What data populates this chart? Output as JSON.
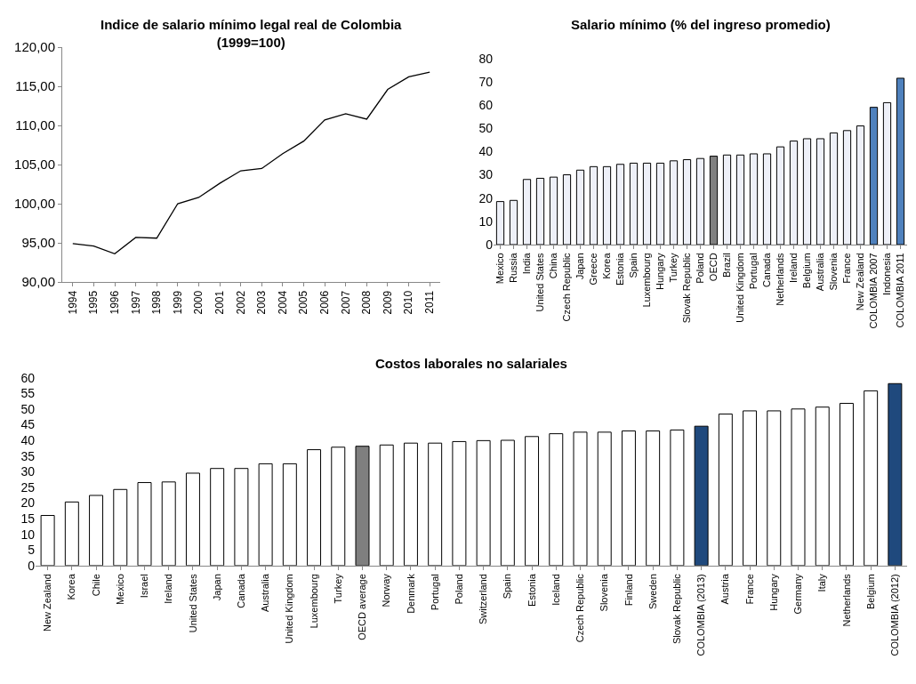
{
  "chart_data": [
    {
      "type": "line",
      "title": "Indice de salario mínimo legal real de Colombia\n(1999=100)",
      "categories": [
        "1994",
        "1995",
        "1996",
        "1997",
        "1998",
        "1999",
        "2000",
        "2001",
        "2002",
        "2003",
        "2004",
        "2005",
        "2006",
        "2007",
        "2008",
        "2009",
        "2010",
        "2011"
      ],
      "values": [
        94.9,
        94.6,
        93.6,
        95.7,
        95.6,
        100.0,
        100.8,
        102.6,
        104.2,
        104.5,
        106.4,
        108.0,
        110.7,
        111.5,
        110.8,
        114.6,
        116.2,
        116.8
      ],
      "color": "#000000",
      "ylim": [
        90,
        120
      ],
      "yticks": [
        {
          "value": 90,
          "label": "90,00"
        },
        {
          "value": 95,
          "label": "95,00"
        },
        {
          "value": 100,
          "label": "100,00"
        },
        {
          "value": 105,
          "label": "105,00"
        },
        {
          "value": 110,
          "label": "110,00"
        },
        {
          "value": 115,
          "label": "115,00"
        },
        {
          "value": 120,
          "label": "120,00"
        }
      ]
    },
    {
      "type": "bar",
      "title": "Salario mínimo (% del ingreso promedio)",
      "categories": [
        "Mexico",
        "Russia",
        "India",
        "United States",
        "China",
        "Czech Republic",
        "Japan",
        "Greece",
        "Korea",
        "Estonia",
        "Spain",
        "Luxembourg",
        "Hungary",
        "Turkey",
        "Slovak Republic",
        "Poland",
        "OECD",
        "Brazil",
        "United Kingdom",
        "Portugal",
        "Canada",
        "Netherlands",
        "Ireland",
        "Belgium",
        "Australia",
        "Slovenia",
        "France",
        "New Zealand",
        "COLOMBIA 2007",
        "Indonesia",
        "COLOMBIA 2011"
      ],
      "values": [
        18.5,
        19,
        28,
        28.5,
        29,
        30,
        32,
        33.5,
        33.5,
        34.5,
        35,
        35,
        35,
        36,
        36.5,
        37,
        38,
        38.5,
        38.5,
        39,
        39,
        42,
        44.5,
        45.5,
        45.5,
        48,
        49,
        51,
        59,
        61,
        71.5
      ],
      "colors": [
        "#eef0f8",
        "#eef0f8",
        "#eef0f8",
        "#eef0f8",
        "#eef0f8",
        "#eef0f8",
        "#eef0f8",
        "#eef0f8",
        "#eef0f8",
        "#eef0f8",
        "#eef0f8",
        "#eef0f8",
        "#eef0f8",
        "#eef0f8",
        "#eef0f8",
        "#eef0f8",
        "#808080",
        "#eef0f8",
        "#eef0f8",
        "#eef0f8",
        "#eef0f8",
        "#eef0f8",
        "#eef0f8",
        "#eef0f8",
        "#eef0f8",
        "#eef0f8",
        "#eef0f8",
        "#eef0f8",
        "#4f81bd",
        "#eef0f8",
        "#4f81bd"
      ],
      "ylim": [
        0,
        80
      ],
      "yticks": [
        0,
        10,
        20,
        30,
        40,
        50,
        60,
        70,
        80
      ]
    },
    {
      "type": "bar",
      "title": "Costos laborales no salariales",
      "categories": [
        "New Zealand",
        "Korea",
        "Chile",
        "Mexico",
        "Israel",
        "Ireland",
        "United States",
        "Japan",
        "Canada",
        "Australia",
        "United Kingdom",
        "Luxembourg",
        "Turkey",
        "OECD average",
        "Norway",
        "Denmark",
        "Portugal",
        "Poland",
        "Switzerland",
        "Spain",
        "Estonia",
        "Iceland",
        "Czech Republic",
        "Slovenia",
        "Finland",
        "Sweden",
        "Slovak Republic",
        "COLOMBIA (2013)",
        "Austria",
        "France",
        "Hungary",
        "Germany",
        "Italy",
        "Netherlands",
        "Belgium",
        "COLOMBIA (2012)"
      ],
      "values": [
        16,
        20.3,
        22.4,
        24.3,
        26.5,
        26.7,
        29.5,
        31,
        31,
        32.5,
        32.5,
        37,
        37.8,
        38.1,
        38.5,
        39.1,
        39.1,
        39.6,
        39.9,
        40,
        41.2,
        42.1,
        42.6,
        42.6,
        43,
        43,
        43.3,
        44.5,
        48.4,
        49.4,
        49.4,
        50,
        50.6,
        51.8,
        55.8,
        58.1
      ],
      "colors": [
        "#ffffff",
        "#ffffff",
        "#ffffff",
        "#ffffff",
        "#ffffff",
        "#ffffff",
        "#ffffff",
        "#ffffff",
        "#ffffff",
        "#ffffff",
        "#ffffff",
        "#ffffff",
        "#ffffff",
        "#7f7f7f",
        "#ffffff",
        "#ffffff",
        "#ffffff",
        "#ffffff",
        "#ffffff",
        "#ffffff",
        "#ffffff",
        "#ffffff",
        "#ffffff",
        "#ffffff",
        "#ffffff",
        "#ffffff",
        "#ffffff",
        "#1f497d",
        "#ffffff",
        "#ffffff",
        "#ffffff",
        "#ffffff",
        "#ffffff",
        "#ffffff",
        "#ffffff",
        "#1f497d"
      ],
      "ylim": [
        0,
        60
      ],
      "yticks": [
        0,
        5,
        10,
        15,
        20,
        25,
        30,
        35,
        40,
        45,
        50,
        55,
        60
      ]
    }
  ]
}
